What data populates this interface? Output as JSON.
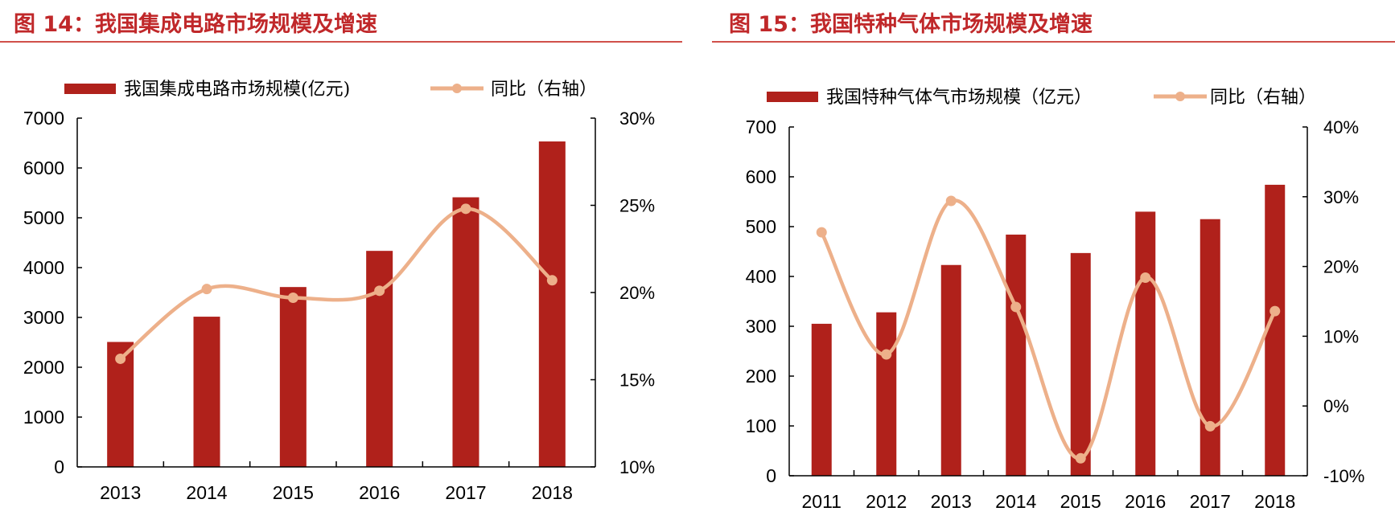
{
  "colors": {
    "bar": "#B0211B",
    "line": "#EDB08A",
    "title": "#C0282A",
    "axis": "#000000"
  },
  "chart_data": [
    {
      "type": "bar+line",
      "title": "图 14：我国集成电路市场规模及增速",
      "categories": [
        "2013",
        "2014",
        "2015",
        "2016",
        "2017",
        "2018"
      ],
      "series": [
        {
          "name": "我国集成电路市场规模(亿元)",
          "type": "bar",
          "axis": "left",
          "values": [
            2508,
            3015,
            3610,
            4336,
            5411,
            6532
          ]
        },
        {
          "name": "同比（右轴）",
          "type": "line",
          "axis": "right",
          "smooth": true,
          "values": [
            16.2,
            20.2,
            19.7,
            20.1,
            24.8,
            20.7
          ]
        }
      ],
      "left_axis": {
        "ylim": [
          0,
          7000
        ],
        "ticks": [
          "0",
          "1000",
          "2000",
          "3000",
          "4000",
          "5000",
          "6000",
          "7000"
        ]
      },
      "right_axis": {
        "ylim": [
          10,
          30
        ],
        "unit": "%",
        "ticks": [
          "10%",
          "15%",
          "20%",
          "25%",
          "30%"
        ]
      },
      "legend": "top",
      "grid": false
    },
    {
      "type": "bar+line",
      "title": "图 15：我国特种气体市场规模及增速",
      "categories": [
        "2011",
        "2012",
        "2013",
        "2014",
        "2015",
        "2016",
        "2017",
        "2018"
      ],
      "series": [
        {
          "name": "我国特种气体气市场规模（亿元）",
          "type": "bar",
          "axis": "left",
          "values": [
            305,
            328,
            423,
            484,
            447,
            530,
            515,
            584
          ]
        },
        {
          "name": "同比（右轴）",
          "type": "line",
          "axis": "right",
          "smooth": true,
          "values": [
            24.9,
            7.4,
            29.4,
            14.2,
            -7.5,
            18.4,
            -2.9,
            13.6
          ]
        }
      ],
      "left_axis": {
        "ylim": [
          0,
          700
        ],
        "ticks": [
          "0",
          "100",
          "200",
          "300",
          "400",
          "500",
          "600",
          "700"
        ]
      },
      "right_axis": {
        "ylim": [
          -10,
          40
        ],
        "unit": "%",
        "ticks": [
          "-10%",
          "0%",
          "10%",
          "20%",
          "30%",
          "40%"
        ]
      },
      "legend": "top",
      "grid": false
    }
  ]
}
